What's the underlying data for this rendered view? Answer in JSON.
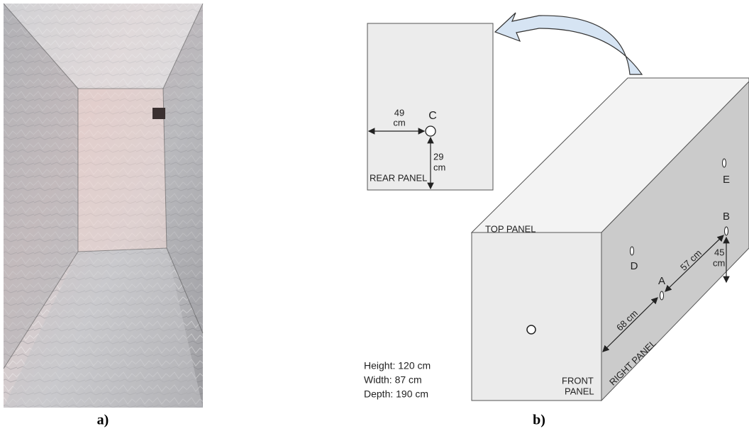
{
  "photo_caption": "a)",
  "diagram_caption": "b)",
  "rear_panel": {
    "label": "REAR PANEL",
    "point": "C",
    "horizontal": [
      "49",
      "cm"
    ],
    "vertical": [
      "29",
      "cm"
    ]
  },
  "box": {
    "top_label": "TOP PANEL",
    "front_label": [
      "FRONT",
      "PANEL"
    ],
    "right_label": "RIGHT PANEL",
    "points": [
      "A",
      "B",
      "D",
      "E"
    ],
    "a_distance": "68 cm",
    "ab_distance": "57 cm",
    "b_height": [
      "45",
      "cm"
    ]
  },
  "dimensions": [
    "Height: 120 cm",
    "Width: 87 cm",
    "Depth: 190 cm"
  ]
}
